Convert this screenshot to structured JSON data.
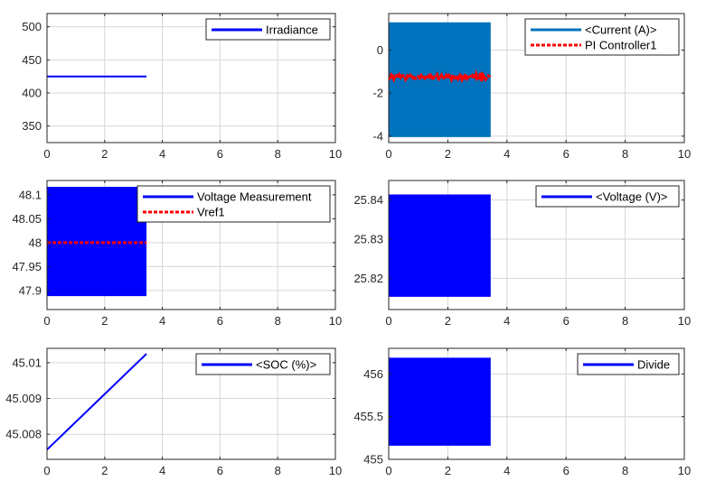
{
  "figure": {
    "background": "#ffffff",
    "grid": true,
    "plots": [
      {
        "id": "irradiance",
        "type": "line",
        "xlim": [
          0,
          10
        ],
        "ylim": [
          325,
          520
        ],
        "x_ticks": [
          0,
          2,
          4,
          6,
          8,
          10
        ],
        "y_ticks": [
          350,
          400,
          450,
          500
        ],
        "y_tick_labels": [
          "350",
          "400",
          "450",
          "500"
        ],
        "legend_position": "top-right",
        "series": [
          {
            "name": "Irradiance",
            "color": "#0000ff",
            "style": "solid",
            "kind": "line",
            "x": [
              0,
              3.45
            ],
            "y": [
              425,
              425
            ]
          }
        ]
      },
      {
        "id": "current",
        "type": "line",
        "xlim": [
          0,
          10
        ],
        "ylim": [
          -4.3,
          1.7
        ],
        "x_ticks": [
          0,
          2,
          4,
          6,
          8,
          10
        ],
        "y_ticks": [
          -4,
          -2,
          0
        ],
        "y_tick_labels": [
          "-4",
          "-2",
          "0"
        ],
        "legend_position": "top-right",
        "series": [
          {
            "name": "<Current (A)>",
            "color": "#0072bd",
            "style": "solid",
            "kind": "oscillation_band",
            "x_start": 0,
            "x_end": 3.45,
            "y_low": -4.0,
            "y_high": 1.25
          },
          {
            "name": "PI Controller1",
            "color": "#ff0000",
            "style": "dashed",
            "kind": "noisy_line",
            "x_start": 0,
            "x_end": 3.45,
            "y_mean": -1.25,
            "y_jitter": 0.08
          }
        ]
      },
      {
        "id": "voltage-measurement",
        "type": "line",
        "xlim": [
          0,
          10
        ],
        "ylim": [
          47.86,
          48.13
        ],
        "x_ticks": [
          0,
          2,
          4,
          6,
          8,
          10
        ],
        "y_ticks": [
          47.9,
          47.95,
          48,
          48.05,
          48.1
        ],
        "y_tick_labels": [
          "47.9",
          "47.95",
          "48",
          "48.05",
          "48.1"
        ],
        "legend_position": "top-right",
        "series": [
          {
            "name": "Voltage Measurement",
            "color": "#0000ff",
            "style": "solid",
            "kind": "oscillation_band",
            "x_start": 0,
            "x_end": 3.45,
            "y_low": 47.89,
            "y_high": 48.115
          },
          {
            "name": "Vref1",
            "color": "#ff0000",
            "style": "dashed",
            "kind": "line",
            "x": [
              0,
              3.45
            ],
            "y": [
              48.0,
              48.0
            ]
          }
        ]
      },
      {
        "id": "voltage",
        "type": "line",
        "xlim": [
          0,
          10
        ],
        "ylim": [
          25.812,
          25.845
        ],
        "x_ticks": [
          0,
          2,
          4,
          6,
          8,
          10
        ],
        "y_ticks": [
          25.82,
          25.83,
          25.84
        ],
        "y_tick_labels": [
          "25.82",
          "25.83",
          "25.84"
        ],
        "legend_position": "top-right",
        "series": [
          {
            "name": "<Voltage (V)>",
            "color": "#0000ff",
            "style": "solid",
            "kind": "oscillation_band",
            "x_start": 0,
            "x_end": 3.45,
            "y_low": 25.8155,
            "y_high": 25.8412
          }
        ]
      },
      {
        "id": "soc",
        "type": "line",
        "xlim": [
          0,
          10
        ],
        "ylim": [
          45.0073,
          45.0104
        ],
        "x_ticks": [
          0,
          2,
          4,
          6,
          8,
          10
        ],
        "y_ticks": [
          45.008,
          45.009,
          45.01
        ],
        "y_tick_labels": [
          "45.008",
          "45.009",
          "45.01"
        ],
        "legend_position": "top-right",
        "series": [
          {
            "name": "<SOC (%)>",
            "color": "#0000ff",
            "style": "solid",
            "kind": "line",
            "x": [
              0,
              3.45
            ],
            "y": [
              45.00757,
              45.01025
            ]
          }
        ]
      },
      {
        "id": "divide",
        "type": "line",
        "xlim": [
          0,
          10
        ],
        "ylim": [
          455,
          456.3
        ],
        "x_ticks": [
          0,
          2,
          4,
          6,
          8,
          10
        ],
        "y_ticks": [
          455,
          455.5,
          456
        ],
        "y_tick_labels": [
          "455",
          "455.5",
          "456"
        ],
        "legend_position": "top-right",
        "series": [
          {
            "name": "Divide",
            "color": "#0000ff",
            "style": "solid",
            "kind": "oscillation_band",
            "x_start": 0,
            "x_end": 3.45,
            "y_low": 455.17,
            "y_high": 456.18
          }
        ]
      }
    ]
  },
  "chart_data": [
    {
      "type": "line",
      "xlim": [
        0,
        10
      ],
      "ylim": [
        325,
        520
      ],
      "grid": true,
      "legend": "top-right",
      "series": [
        {
          "name": "Irradiance",
          "x": [
            0,
            3.45
          ],
          "y": [
            425,
            425
          ]
        }
      ]
    },
    {
      "type": "line",
      "xlim": [
        0,
        10
      ],
      "ylim": [
        -4.3,
        1.7
      ],
      "grid": true,
      "legend": "top-right",
      "series": [
        {
          "name": "<Current (A)>",
          "x": [
            0,
            3.45
          ],
          "y_range": [
            -4.0,
            1.25
          ]
        },
        {
          "name": "PI Controller1",
          "x": [
            0,
            3.45
          ],
          "y": [
            -1.25,
            -1.25
          ]
        }
      ]
    },
    {
      "type": "line",
      "xlim": [
        0,
        10
      ],
      "ylim": [
        47.86,
        48.13
      ],
      "grid": true,
      "legend": "top-right",
      "series": [
        {
          "name": "Voltage Measurement",
          "x": [
            0,
            3.45
          ],
          "y_range": [
            47.89,
            48.115
          ]
        },
        {
          "name": "Vref1",
          "x": [
            0,
            3.45
          ],
          "y": [
            48.0,
            48.0
          ]
        }
      ]
    },
    {
      "type": "line",
      "xlim": [
        0,
        10
      ],
      "ylim": [
        25.812,
        25.845
      ],
      "grid": true,
      "legend": "top-right",
      "series": [
        {
          "name": "<Voltage (V)>",
          "x": [
            0,
            3.45
          ],
          "y_range": [
            25.8155,
            25.8412
          ]
        }
      ]
    },
    {
      "type": "line",
      "xlim": [
        0,
        10
      ],
      "ylim": [
        45.0073,
        45.0104
      ],
      "grid": true,
      "legend": "top-right",
      "series": [
        {
          "name": "<SOC (%)>",
          "x": [
            0,
            3.45
          ],
          "y": [
            45.00757,
            45.01025
          ]
        }
      ]
    },
    {
      "type": "line",
      "xlim": [
        0,
        10
      ],
      "ylim": [
        455,
        456.3
      ],
      "grid": true,
      "legend": "top-right",
      "series": [
        {
          "name": "Divide",
          "x": [
            0,
            3.45
          ],
          "y_range": [
            455.17,
            456.18
          ]
        }
      ]
    }
  ]
}
